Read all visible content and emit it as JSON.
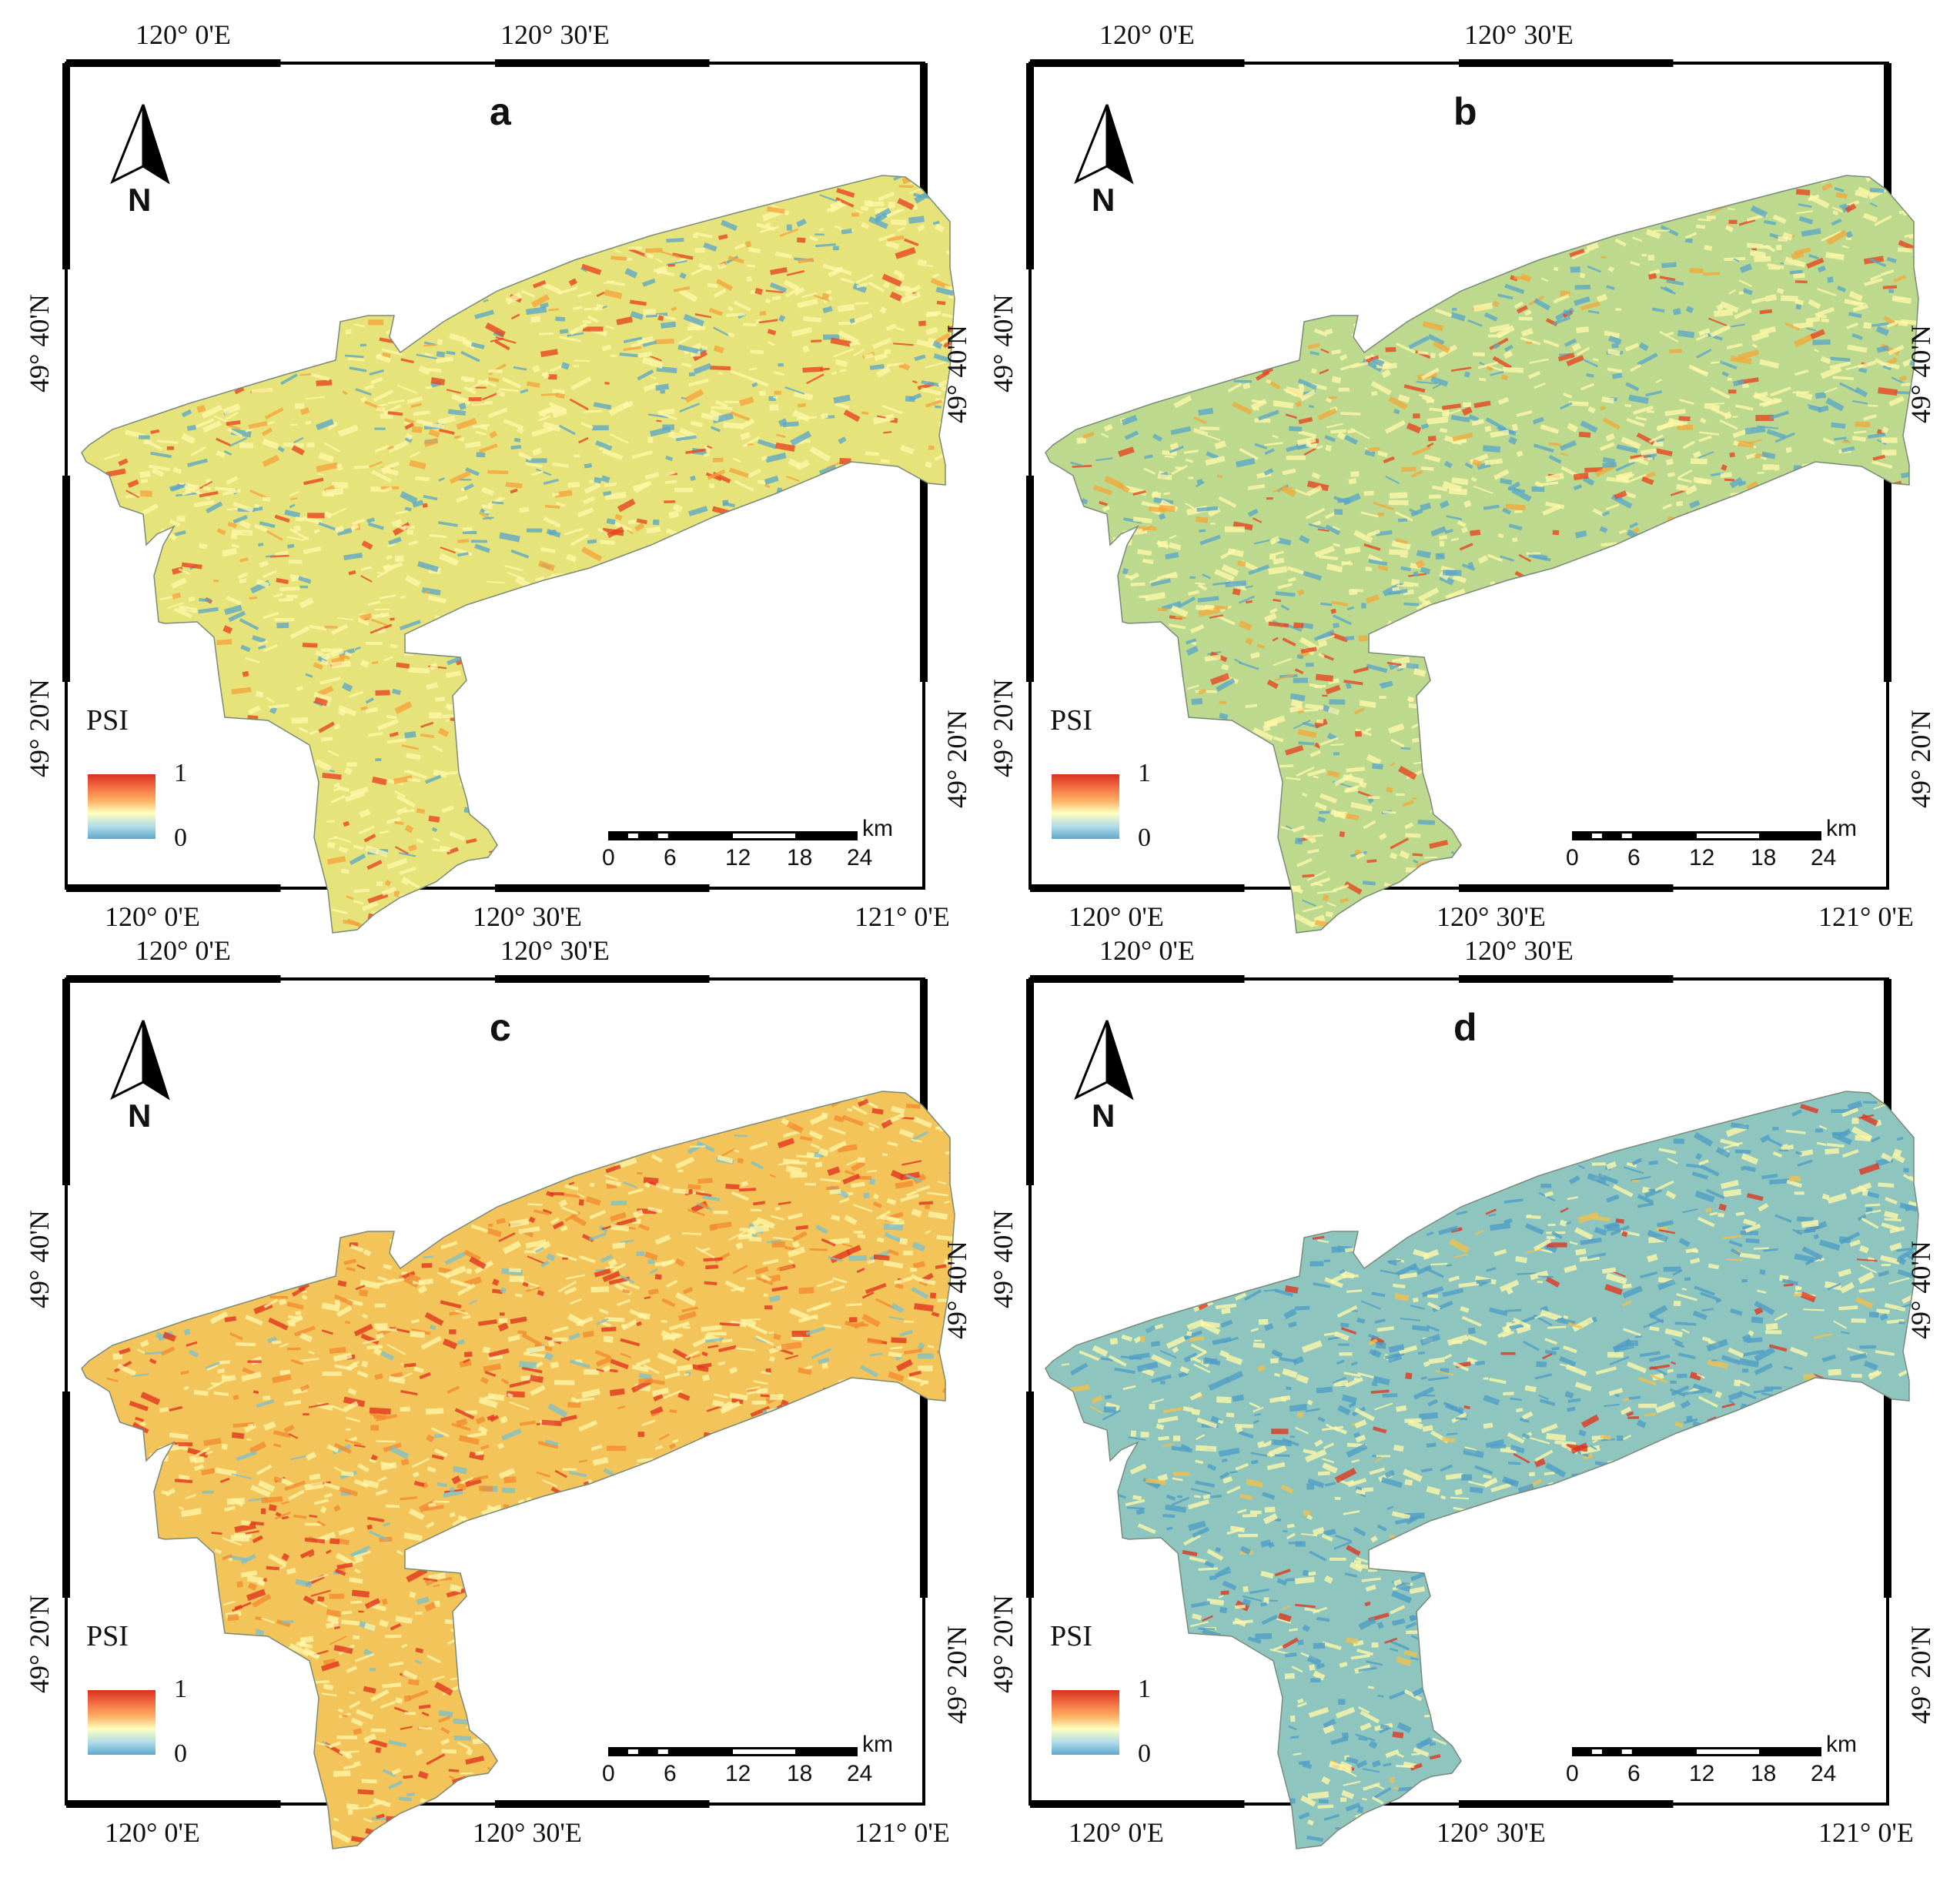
{
  "legend": {
    "title": "PSI",
    "max_label": "1",
    "min_label": "0"
  },
  "north_arrow": {
    "label": "N"
  },
  "scale_bar": {
    "unit": "km",
    "ticks": [
      "0",
      "6",
      "12",
      "18",
      "24"
    ]
  },
  "coordinates": {
    "top_left": "120° 0'E",
    "top_mid": "120° 30'E",
    "bottom_left": "120° 0'E",
    "bottom_mid": "120° 30'E",
    "bottom_right": "121° 0'E",
    "left_upper": "49° 40'N",
    "left_lower": "49° 20'N",
    "right_upper": "49° 40'N",
    "right_lower": "49° 20'N"
  },
  "panels": [
    {
      "id": "a",
      "letter": "a",
      "palette": {
        "base": "#e6e37a",
        "hot": "#e8411f",
        "warm": "#f5a33b",
        "cool": "#5aa6c8"
      },
      "hot_share": 0.25,
      "cool_share": 0.2
    },
    {
      "id": "b",
      "letter": "b",
      "palette": {
        "base": "#bcd98e",
        "hot": "#e8411f",
        "warm": "#f4a83a",
        "cool": "#5aa6c8"
      },
      "hot_share": 0.22,
      "cool_share": 0.28
    },
    {
      "id": "c",
      "letter": "c",
      "palette": {
        "base": "#f3c45a",
        "hot": "#e0321c",
        "warm": "#f28a2e",
        "cool": "#7cc0c8"
      },
      "hot_share": 0.4,
      "cool_share": 0.12
    },
    {
      "id": "d",
      "letter": "d",
      "palette": {
        "base": "#8ec6bf",
        "hot": "#e0321c",
        "warm": "#f2c04a",
        "cool": "#4e9cc6"
      },
      "hot_share": 0.1,
      "cool_share": 0.45
    }
  ]
}
